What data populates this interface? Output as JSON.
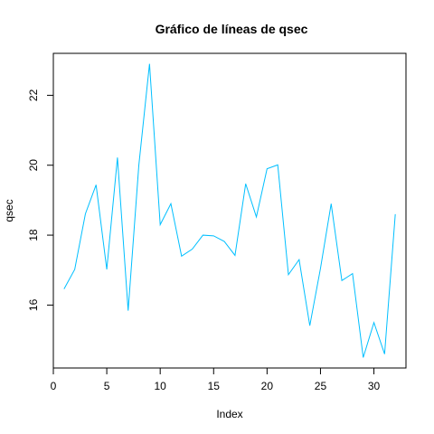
{
  "chart_data": {
    "type": "line",
    "title": "Gráfico de líneas de  qsec",
    "xlabel": "Index",
    "ylabel": "qsec",
    "xlim": [
      0,
      33
    ],
    "ylim": [
      14.2,
      23.2
    ],
    "x_ticks": [
      0,
      5,
      10,
      15,
      20,
      25,
      30
    ],
    "y_ticks": [
      16,
      18,
      20,
      22
    ],
    "grid": false,
    "legend": "none",
    "series": [
      {
        "color": "#00BFFF",
        "x": [
          1,
          2,
          3,
          4,
          5,
          6,
          7,
          8,
          9,
          10,
          11,
          12,
          13,
          14,
          15,
          16,
          17,
          18,
          19,
          20,
          21,
          22,
          23,
          24,
          25,
          26,
          27,
          28,
          29,
          30,
          31,
          32
        ],
        "values": [
          16.46,
          17.02,
          18.61,
          19.44,
          17.02,
          20.22,
          15.84,
          20.0,
          22.9,
          18.3,
          18.9,
          17.4,
          17.6,
          18.0,
          17.98,
          17.82,
          17.42,
          19.47,
          18.52,
          19.9,
          20.01,
          16.87,
          17.3,
          15.41,
          17.05,
          18.9,
          16.7,
          16.9,
          14.5,
          15.5,
          14.6,
          18.6
        ]
      }
    ]
  }
}
